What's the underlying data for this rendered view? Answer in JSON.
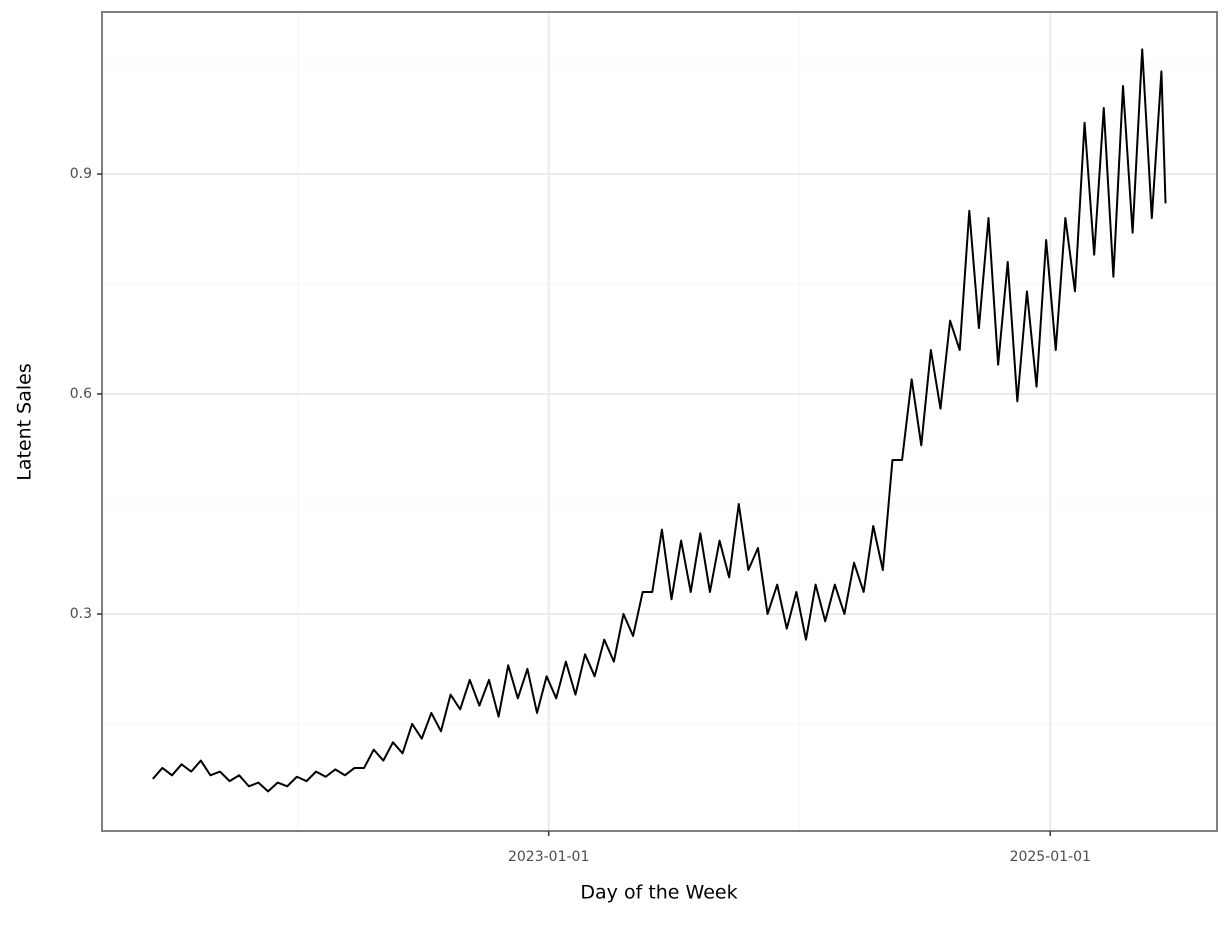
{
  "chart_data": {
    "type": "line",
    "x_label": "Day of the Week",
    "y_label": "Latent Sales",
    "color": "#000000",
    "grid": true,
    "xlim": [
      "2021-03-21",
      "2025-09-01"
    ],
    "xticks": [
      "2023-01-01",
      "2025-01-01"
    ],
    "xminorticks": [
      "2022-01-01",
      "2024-01-01"
    ],
    "ylim": [
      0.004,
      1.121
    ],
    "yticks": [
      0.3,
      0.6,
      0.9
    ],
    "yminorticks": [
      0.15,
      0.45,
      0.75,
      1.05
    ],
    "x": [
      "2021-06-03",
      "2021-06-17",
      "2021-07-01",
      "2021-07-15",
      "2021-07-29",
      "2021-08-12",
      "2021-08-26",
      "2021-09-09",
      "2021-09-23",
      "2021-10-07",
      "2021-10-21",
      "2021-11-04",
      "2021-11-18",
      "2021-12-02",
      "2021-12-16",
      "2021-12-30",
      "2022-01-13",
      "2022-01-27",
      "2022-02-10",
      "2022-02-24",
      "2022-03-10",
      "2022-03-24",
      "2022-04-07",
      "2022-04-21",
      "2022-05-05",
      "2022-05-19",
      "2022-06-02",
      "2022-06-16",
      "2022-06-30",
      "2022-07-14",
      "2022-07-28",
      "2022-08-11",
      "2022-08-25",
      "2022-09-08",
      "2022-09-22",
      "2022-10-06",
      "2022-10-20",
      "2022-11-03",
      "2022-11-17",
      "2022-12-01",
      "2022-12-15",
      "2022-12-29",
      "2023-01-12",
      "2023-01-26",
      "2023-02-09",
      "2023-02-23",
      "2023-03-09",
      "2023-03-23",
      "2023-04-06",
      "2023-04-20",
      "2023-05-04",
      "2023-05-18",
      "2023-06-01",
      "2023-06-15",
      "2023-06-29",
      "2023-07-13",
      "2023-07-27",
      "2023-08-10",
      "2023-08-24",
      "2023-09-07",
      "2023-09-21",
      "2023-10-05",
      "2023-10-19",
      "2023-11-02",
      "2023-11-16",
      "2023-11-30",
      "2023-12-14",
      "2023-12-28",
      "2024-01-11",
      "2024-01-25",
      "2024-02-08",
      "2024-02-22",
      "2024-03-07",
      "2024-03-21",
      "2024-04-04",
      "2024-04-18",
      "2024-05-02",
      "2024-05-16",
      "2024-05-30",
      "2024-06-13",
      "2024-06-27",
      "2024-07-11",
      "2024-07-25",
      "2024-08-08",
      "2024-08-22",
      "2024-09-05",
      "2024-09-19",
      "2024-10-03",
      "2024-10-17",
      "2024-10-31",
      "2024-11-14",
      "2024-11-28",
      "2024-12-12",
      "2024-12-26",
      "2025-01-09",
      "2025-01-23",
      "2025-02-06",
      "2025-02-20",
      "2025-03-06",
      "2025-03-20",
      "2025-04-03",
      "2025-04-17",
      "2025-05-01",
      "2025-05-15",
      "2025-05-29",
      "2025-06-12",
      "2025-06-18"
    ],
    "values": [
      0.075,
      0.09,
      0.08,
      0.095,
      0.085,
      0.1,
      0.08,
      0.085,
      0.072,
      0.08,
      0.065,
      0.07,
      0.058,
      0.07,
      0.065,
      0.078,
      0.072,
      0.085,
      0.078,
      0.088,
      0.08,
      0.09,
      0.09,
      0.115,
      0.1,
      0.125,
      0.11,
      0.15,
      0.13,
      0.165,
      0.14,
      0.19,
      0.17,
      0.21,
      0.175,
      0.21,
      0.16,
      0.23,
      0.185,
      0.225,
      0.165,
      0.215,
      0.185,
      0.235,
      0.19,
      0.245,
      0.215,
      0.265,
      0.235,
      0.3,
      0.27,
      0.33,
      0.33,
      0.415,
      0.32,
      0.4,
      0.33,
      0.41,
      0.33,
      0.4,
      0.35,
      0.45,
      0.36,
      0.39,
      0.3,
      0.34,
      0.28,
      0.33,
      0.265,
      0.34,
      0.29,
      0.34,
      0.3,
      0.37,
      0.33,
      0.42,
      0.36,
      0.51,
      0.51,
      0.62,
      0.53,
      0.66,
      0.58,
      0.7,
      0.66,
      0.85,
      0.69,
      0.84,
      0.64,
      0.78,
      0.59,
      0.74,
      0.61,
      0.81,
      0.66,
      0.84,
      0.74,
      0.97,
      0.79,
      0.99,
      0.76,
      1.02,
      0.82,
      1.07,
      0.84,
      1.04,
      0.86
    ]
  }
}
